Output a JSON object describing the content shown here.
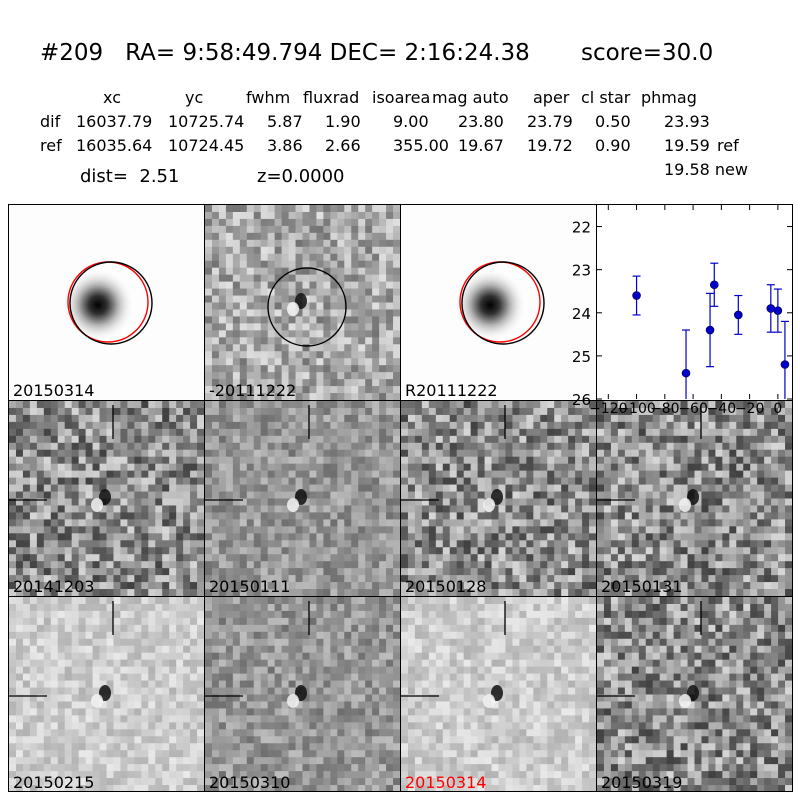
{
  "header": {
    "title": "#209   RA= 9:58:49.794 DEC= 2:16:24.38       score=30.0"
  },
  "table": {
    "columns": [
      "xc",
      "yc",
      "fwhm",
      "fluxrad",
      "isoarea",
      "mag auto",
      "aper",
      "cl star",
      "phmag"
    ],
    "rows": [
      {
        "label": "dif",
        "values": [
          "16037.79",
          "10725.74",
          "5.87",
          "1.90",
          "9.00",
          "23.80",
          "23.79",
          "0.50",
          "23.93"
        ],
        "suffix": ""
      },
      {
        "label": "ref",
        "values": [
          "16035.64",
          "10724.45",
          "3.86",
          "2.66",
          "355.00",
          "19.67",
          "19.72",
          "0.90",
          "19.59"
        ],
        "suffix": "ref"
      }
    ],
    "extra": "19.58 new",
    "dist": "dist=  2.51",
    "z": "z=0.0000"
  },
  "tiles": [
    {
      "label": "20150314",
      "style": "sci",
      "highlight": false
    },
    {
      "label": "-20111222",
      "style": "diff",
      "highlight": false
    },
    {
      "label": "R20111222",
      "style": "sci",
      "highlight": false
    },
    {
      "label": "20141203",
      "style": "noisy",
      "highlight": false
    },
    {
      "label": "20150111",
      "style": "smooth",
      "highlight": false
    },
    {
      "label": "20150128",
      "style": "noisy",
      "highlight": false
    },
    {
      "label": "20150131",
      "style": "noisy",
      "highlight": false
    },
    {
      "label": "20150215",
      "style": "light",
      "highlight": false
    },
    {
      "label": "20150310",
      "style": "smooth",
      "highlight": false
    },
    {
      "label": "20150314",
      "style": "light",
      "highlight": true
    },
    {
      "label": "20150319",
      "style": "noisy",
      "highlight": false
    }
  ],
  "colors": {
    "highlight": "#ff0000",
    "marker": "#0000cc",
    "circle_red": "#ff0000",
    "circle_black": "#000000"
  },
  "chart_data": {
    "type": "scatter",
    "x": [
      -100,
      -65,
      -48,
      -45,
      -28,
      -5,
      0,
      5
    ],
    "y": [
      23.6,
      25.4,
      24.4,
      23.35,
      24.05,
      23.9,
      23.95,
      25.2
    ],
    "yerr": [
      0.45,
      1.0,
      0.85,
      0.5,
      0.45,
      0.55,
      0.5,
      1.0
    ],
    "xticks": [
      "-120",
      "-100",
      "-80",
      "-60",
      "-40",
      "-20",
      "0"
    ],
    "yticks": [
      "22",
      "23",
      "24",
      "25",
      "26"
    ],
    "xlim": [
      -128,
      10
    ],
    "ylim": [
      26,
      21.5
    ],
    "y_inverted": true
  }
}
